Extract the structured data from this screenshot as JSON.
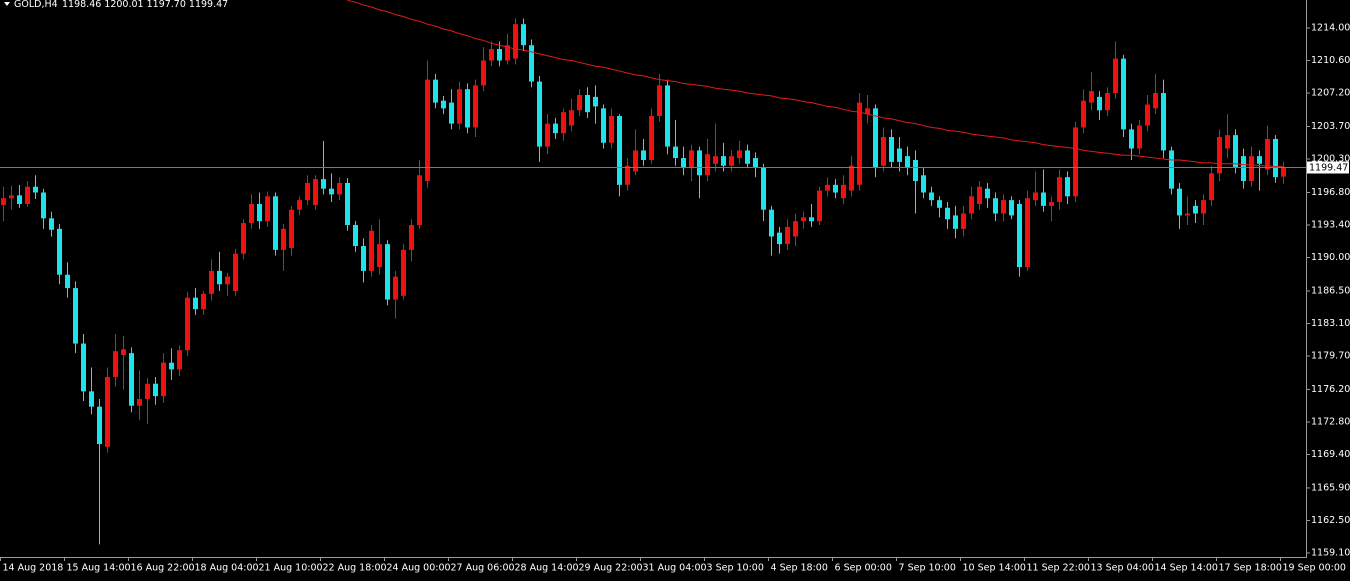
{
  "chart_data": {
    "type": "candlestick",
    "title": "GOLD,H4",
    "quote": "1198.46 1200.01 1197.70 1199.47",
    "up_color": "#f01010",
    "down_color": "#1ee3ea",
    "x": [
      "14 Aug 2018",
      null,
      null,
      null,
      null,
      null,
      null,
      null,
      "15 Aug 14:00",
      null,
      null,
      null,
      null,
      null,
      null,
      null,
      "16 Aug 22:00",
      null,
      null,
      null,
      null,
      null,
      null,
      null,
      "18 Aug 04:00",
      null,
      null,
      null,
      null,
      null,
      null,
      null,
      "21 Aug 10:00",
      null,
      null,
      null,
      null,
      null,
      null,
      null,
      "22 Aug 18:00",
      null,
      null,
      null,
      null,
      null,
      null,
      null,
      "24 Aug 00:00",
      null,
      null,
      null,
      null,
      null,
      null,
      null,
      "27 Aug 06:00",
      null,
      null,
      null,
      null,
      null,
      null,
      null,
      "28 Aug 14:00",
      null,
      null,
      null,
      null,
      null,
      null,
      null,
      "29 Aug 22:00",
      null,
      null,
      null,
      null,
      null,
      null,
      null,
      "31 Aug 04:00",
      null,
      null,
      null,
      null,
      null,
      null,
      null,
      "3 Sep 10:00",
      null,
      null,
      null,
      null,
      null,
      null,
      null,
      "4 Sep 18:00",
      null,
      null,
      null,
      null,
      null,
      null,
      null,
      "6 Sep 00:00",
      null,
      null,
      null,
      null,
      null,
      null,
      null,
      "7 Sep 10:00",
      null,
      null,
      null,
      null,
      null,
      null,
      null,
      "10 Sep 14:00",
      null,
      null,
      null,
      null,
      null,
      null,
      null,
      "11 Sep 22:00",
      null,
      null,
      null,
      null,
      null,
      null,
      null,
      "13 Sep 04:00",
      null,
      null,
      null,
      null,
      null,
      null,
      null,
      "14 Sep 14:00",
      null,
      null,
      null,
      null,
      null,
      null,
      null,
      "17 Sep 18:00",
      null,
      null,
      null,
      null,
      null,
      null,
      null,
      "19 Sep 00:00"
    ],
    "open": [
      1195.5,
      1196.2,
      1196.5,
      1195.6,
      1197.4,
      1196.8,
      1194.1,
      1193,
      1188.2,
      1186.8,
      1181,
      1176,
      1174.4,
      1170.2,
      1177.5,
      1179.8,
      1180,
      1174.5,
      1175.2,
      1176.8,
      1175.5,
      1179,
      1178.3,
      1180.3,
      1185.8,
      1184.6,
      1186.2,
      1188.6,
      1187.2,
      1186.5,
      1190.4,
      1193.6,
      1195.6,
      1193.8,
      1196.4,
      1190.8,
      1191,
      1195,
      1196,
      1195.5,
      1198.2,
      1197.2,
      1196.6,
      1197.8,
      1193.4,
      1191.2,
      1188.6,
      1189,
      1191.4,
      1185.6,
      1186,
      1190.8,
      1193.4,
      1198,
      1208.6,
      1206.4,
      1206.2,
      1204,
      1207.6,
      1203.6,
      1208,
      1210.6,
      1211.8,
      1210.6,
      1210.8,
      1214.4,
      1212.2,
      1208.4,
      1201.6,
      1204,
      1203,
      1203.8,
      1205.4,
      1207,
      1206.8,
      1205.6,
      1202,
      1204.8,
      1197.6,
      1199,
      1201.2,
      1200.2,
      1204.8,
      1208,
      1201.6,
      1200.4,
      1199.4,
      1201.2,
      1198.6,
      1199.8,
      1200.6,
      1199.6,
      1200.4,
      1201.2,
      1200.4,
      1199.4,
      1195,
      1192.6,
      1191.4,
      1192.2,
      1193.8,
      1194.2,
      1193.8,
      1197,
      1197.6,
      1196.2,
      1197,
      1197.6,
      1205,
      1205.6,
      1199.6,
      1202.6,
      1201.4,
      1200.6,
      1200.2,
      1198.6,
      1196.8,
      1196,
      1195.2,
      1194.4,
      1193,
      1194.6,
      1195.6,
      1197.2,
      1196.2,
      1194.6,
      1196,
      1195.6,
      1189,
      1196,
      1196.8,
      1195.4,
      1195.8,
      1198.4,
      1196.4,
      1203.6,
      1206.2,
      1206.8,
      1205.4,
      1207.2,
      1210.8,
      1203.4,
      1201.4,
      1203.8,
      1205.6,
      1207.2,
      1201.2,
      1197.2,
      1194.4,
      1195.4,
      1194.6,
      1196,
      1198.8,
      1201.4,
      1202.8,
      1200.6,
      1198,
      1200.6,
      1199.2,
      1202.4,
      1198.46
    ],
    "high": [
      1197.4,
      1197.5,
      1197.6,
      1198,
      1198.6,
      1197.2,
      1194.8,
      1193.5,
      1189.5,
      1187.5,
      1182,
      1178.5,
      1175.2,
      1178.5,
      1182,
      1181.8,
      1180.6,
      1178.2,
      1177.4,
      1177.5,
      1180,
      1180.5,
      1180.8,
      1186.4,
      1186.8,
      1186.5,
      1189.8,
      1190.6,
      1188.4,
      1190.9,
      1194,
      1196.6,
      1196.8,
      1196.9,
      1196.8,
      1193.5,
      1195.4,
      1196.4,
      1198.6,
      1198.6,
      1202.2,
      1198.8,
      1198.4,
      1198.3,
      1193.8,
      1192,
      1193.4,
      1194,
      1191.8,
      1188.6,
      1191.4,
      1194,
      1200.2,
      1210.6,
      1209.2,
      1206.9,
      1207.6,
      1208.4,
      1208.2,
      1208.6,
      1212,
      1212.6,
      1212.6,
      1213.4,
      1215,
      1215,
      1212.8,
      1209,
      1205,
      1204.6,
      1205.6,
      1206.6,
      1207.6,
      1207.8,
      1208,
      1206,
      1205.6,
      1205,
      1200.4,
      1203.4,
      1202.4,
      1205.6,
      1209.2,
      1208.6,
      1204.4,
      1201.6,
      1201.8,
      1201.6,
      1202.4,
      1204,
      1202,
      1201.2,
      1202.2,
      1201.8,
      1201,
      1199.8,
      1195.4,
      1193.2,
      1194,
      1194.6,
      1194.8,
      1195.6,
      1197.4,
      1198.4,
      1198.2,
      1198.6,
      1200.6,
      1207.2,
      1207,
      1206,
      1203.6,
      1203.4,
      1202.6,
      1201.6,
      1201.2,
      1199.4,
      1197.4,
      1196.4,
      1195.8,
      1195.4,
      1195.4,
      1197.4,
      1198,
      1197.8,
      1196.8,
      1196.6,
      1196.4,
      1196,
      1197,
      1199,
      1199.2,
      1196.4,
      1199.2,
      1199,
      1204.2,
      1207.6,
      1209.4,
      1207.4,
      1207.8,
      1212.6,
      1211.2,
      1204,
      1204.4,
      1207,
      1209.2,
      1208.6,
      1201.6,
      1197.8,
      1196.4,
      1196,
      1196.6,
      1199.6,
      1203.4,
      1205,
      1203.4,
      1201.4,
      1201.6,
      1201.2,
      1203.8,
      1202.8,
      1200.01
    ],
    "low": [
      1193.8,
      1195,
      1195.2,
      1195.3,
      1196.1,
      1193,
      1192.2,
      1187.2,
      1185.8,
      1180,
      1175,
      1173.6,
      1160,
      1169.6,
      1176.5,
      1176.2,
      1173.8,
      1173,
      1172.6,
      1174.6,
      1174.8,
      1177.2,
      1177.6,
      1179.7,
      1184,
      1184,
      1185.5,
      1186.5,
      1186,
      1186,
      1189.8,
      1193,
      1193,
      1193.2,
      1190.2,
      1188.6,
      1190.2,
      1194.4,
      1195.5,
      1195,
      1196.6,
      1195.8,
      1196,
      1192.8,
      1190.6,
      1187.4,
      1188,
      1188.2,
      1185,
      1183.6,
      1185.6,
      1189.6,
      1193,
      1197.3,
      1205.6,
      1205,
      1203.4,
      1203.4,
      1203,
      1202.6,
      1207.4,
      1210,
      1210,
      1210.2,
      1210.2,
      1211.6,
      1207.8,
      1200,
      1200.8,
      1202.4,
      1202.2,
      1203.2,
      1204.8,
      1204.6,
      1204,
      1201.4,
      1201.4,
      1196.4,
      1197,
      1198.6,
      1199.6,
      1199.8,
      1204.2,
      1200.8,
      1199.6,
      1198.6,
      1198,
      1196.2,
      1198,
      1199,
      1199,
      1199,
      1199.8,
      1199.4,
      1198.4,
      1193.8,
      1190.2,
      1190.4,
      1190.8,
      1191.2,
      1193,
      1193.2,
      1193.4,
      1196.4,
      1196.2,
      1195.6,
      1196.4,
      1197,
      1204,
      1198.4,
      1199,
      1199.4,
      1199,
      1198.6,
      1194.6,
      1196.2,
      1195.4,
      1194.2,
      1193,
      1192,
      1192.2,
      1194,
      1195,
      1195.2,
      1193.8,
      1193.8,
      1194,
      1188,
      1188.6,
      1195.4,
      1194.8,
      1193.8,
      1195,
      1195.6,
      1195.8,
      1203,
      1205.4,
      1204.4,
      1204.8,
      1206.6,
      1202.6,
      1200.2,
      1200.8,
      1203.2,
      1205,
      1200.4,
      1196.6,
      1193,
      1193.4,
      1193.6,
      1193.4,
      1195.4,
      1198,
      1200.4,
      1198.8,
      1197.2,
      1197.4,
      1197,
      1198.6,
      1197.8,
      1197.7
    ],
    "close": [
      1196.2,
      1196.5,
      1195.6,
      1197.4,
      1196.8,
      1194.1,
      1192.9,
      1188.2,
      1186.8,
      1181,
      1176,
      1174.4,
      1170.5,
      1177.5,
      1180.2,
      1180.4,
      1174.5,
      1175.2,
      1176.8,
      1175.5,
      1179,
      1178.3,
      1180.3,
      1185.8,
      1184.6,
      1186.2,
      1188.6,
      1187.2,
      1188,
      1190.4,
      1193.6,
      1195.6,
      1193.8,
      1196.4,
      1190.8,
      1193,
      1195,
      1196,
      1197.8,
      1198.2,
      1197.2,
      1196.6,
      1197.8,
      1193.4,
      1191.2,
      1188.6,
      1192.8,
      1191.4,
      1185.6,
      1188,
      1190.8,
      1193.4,
      1198.6,
      1208.6,
      1206.2,
      1205.6,
      1204,
      1207.6,
      1203.6,
      1208,
      1210.6,
      1211.8,
      1210.6,
      1212.2,
      1214.4,
      1212.2,
      1208.4,
      1201.6,
      1204,
      1203,
      1205.2,
      1205.4,
      1207,
      1205.2,
      1205.8,
      1202,
      1204.8,
      1197.6,
      1199.6,
      1201.2,
      1200.2,
      1204.8,
      1208,
      1201.6,
      1200.4,
      1199.4,
      1201.2,
      1198.6,
      1200.8,
      1200.6,
      1199.6,
      1200.6,
      1201.2,
      1199.8,
      1199.4,
      1195,
      1192.2,
      1191.4,
      1193.2,
      1193.8,
      1194.2,
      1193.8,
      1197,
      1197.6,
      1196.8,
      1197.6,
      1199.6,
      1206.2,
      1205.6,
      1199.4,
      1202.6,
      1200,
      1200,
      1199.4,
      1198,
      1196.8,
      1196,
      1195.2,
      1194,
      1193,
      1194.6,
      1196.4,
      1197.4,
      1196.2,
      1194.6,
      1196,
      1194.4,
      1189,
      1196.2,
      1196.8,
      1195.4,
      1195.8,
      1198.4,
      1196.4,
      1203.6,
      1206.4,
      1207.4,
      1205.4,
      1207.2,
      1210.8,
      1203.4,
      1201.4,
      1203.8,
      1206,
      1207.2,
      1201.2,
      1197.2,
      1194.4,
      1194.6,
      1194.6,
      1196,
      1198.8,
      1202.6,
      1202.8,
      1199.4,
      1198,
      1200.6,
      1199.8,
      1202.4,
      1198.4,
      1199.47
    ],
    "ma": {
      "color": "#e01c1c",
      "values": [
        null,
        null,
        null,
        null,
        null,
        null,
        null,
        null,
        null,
        null,
        null,
        null,
        null,
        null,
        null,
        null,
        null,
        null,
        null,
        null,
        null,
        null,
        null,
        null,
        null,
        null,
        null,
        null,
        null,
        null,
        null,
        null,
        null,
        null,
        null,
        null,
        null,
        null,
        null,
        null,
        null,
        null,
        null,
        1216.9,
        1216.7,
        1216.4,
        1216.2,
        1215.9,
        1215.7,
        1215.4,
        1215.2,
        1214.9,
        1214.7,
        1214.4,
        1214.2,
        1213.9,
        1213.7,
        1213.4,
        1213.2,
        1212.9,
        1212.7,
        1212.4,
        1212.2,
        1212.0,
        1211.8,
        1211.7,
        1211.5,
        1211.3,
        1211.1,
        1210.9,
        1210.7,
        1210.6,
        1210.4,
        1210.2,
        1210.0,
        1209.9,
        1209.7,
        1209.5,
        1209.3,
        1209.1,
        1209.0,
        1208.8,
        1208.6,
        1208.5,
        1208.4,
        1208.2,
        1208.1,
        1208.0,
        1207.9,
        1207.7,
        1207.6,
        1207.5,
        1207.4,
        1207.2,
        1207.1,
        1207.0,
        1206.9,
        1206.7,
        1206.6,
        1206.5,
        1206.3,
        1206.2,
        1206.0,
        1205.8,
        1205.7,
        1205.5,
        1205.3,
        1205.2,
        1205.0,
        1204.8,
        1204.6,
        1204.5,
        1204.3,
        1204.1,
        1204.0,
        1203.8,
        1203.6,
        1203.5,
        1203.3,
        1203.2,
        1203.1,
        1202.9,
        1202.8,
        1202.7,
        1202.6,
        1202.5,
        1202.3,
        1202.2,
        1202.1,
        1202.0,
        1201.8,
        1201.7,
        1201.6,
        1201.5,
        1201.4,
        1201.2,
        1201.1,
        1201.0,
        1200.9,
        1200.8,
        1200.7,
        1200.7,
        1200.6,
        1200.5,
        1200.4,
        1200.3,
        1200.2,
        1200.2,
        1200.1,
        1200.0,
        1199.9,
        1199.9,
        1199.8,
        1199.8,
        1199.8,
        1199.7,
        1199.7,
        1199.6,
        1199.6,
        1199.5,
        1199.5
      ]
    },
    "last_price": 1199.47,
    "last_price_color": "#5f7f9c",
    "ylim": [
      1158.68,
      1216.93
    ],
    "yticks": [
      {
        "value": 1214,
        "label": "1214.00"
      },
      {
        "value": 1210.6,
        "label": "1210.60"
      },
      {
        "value": 1207.2,
        "label": "1207.20"
      },
      {
        "value": 1203.7,
        "label": "1203.70"
      },
      {
        "value": 1200.3,
        "label": "1200.30"
      },
      {
        "value": 1196.8,
        "label": "1196.80"
      },
      {
        "value": 1193.4,
        "label": "1193.40"
      },
      {
        "value": 1190,
        "label": "1190.00"
      },
      {
        "value": 1186.5,
        "label": "1186.50"
      },
      {
        "value": 1183.1,
        "label": "1183.10"
      },
      {
        "value": 1179.7,
        "label": "1179.70"
      },
      {
        "value": 1176.2,
        "label": "1176.20"
      },
      {
        "value": 1172.8,
        "label": "1172.80"
      },
      {
        "value": 1169.4,
        "label": "1169.40"
      },
      {
        "value": 1165.9,
        "label": "1165.90"
      },
      {
        "value": 1162.5,
        "label": "1162.50"
      },
      {
        "value": 1159.1,
        "label": "1159.10"
      }
    ]
  }
}
